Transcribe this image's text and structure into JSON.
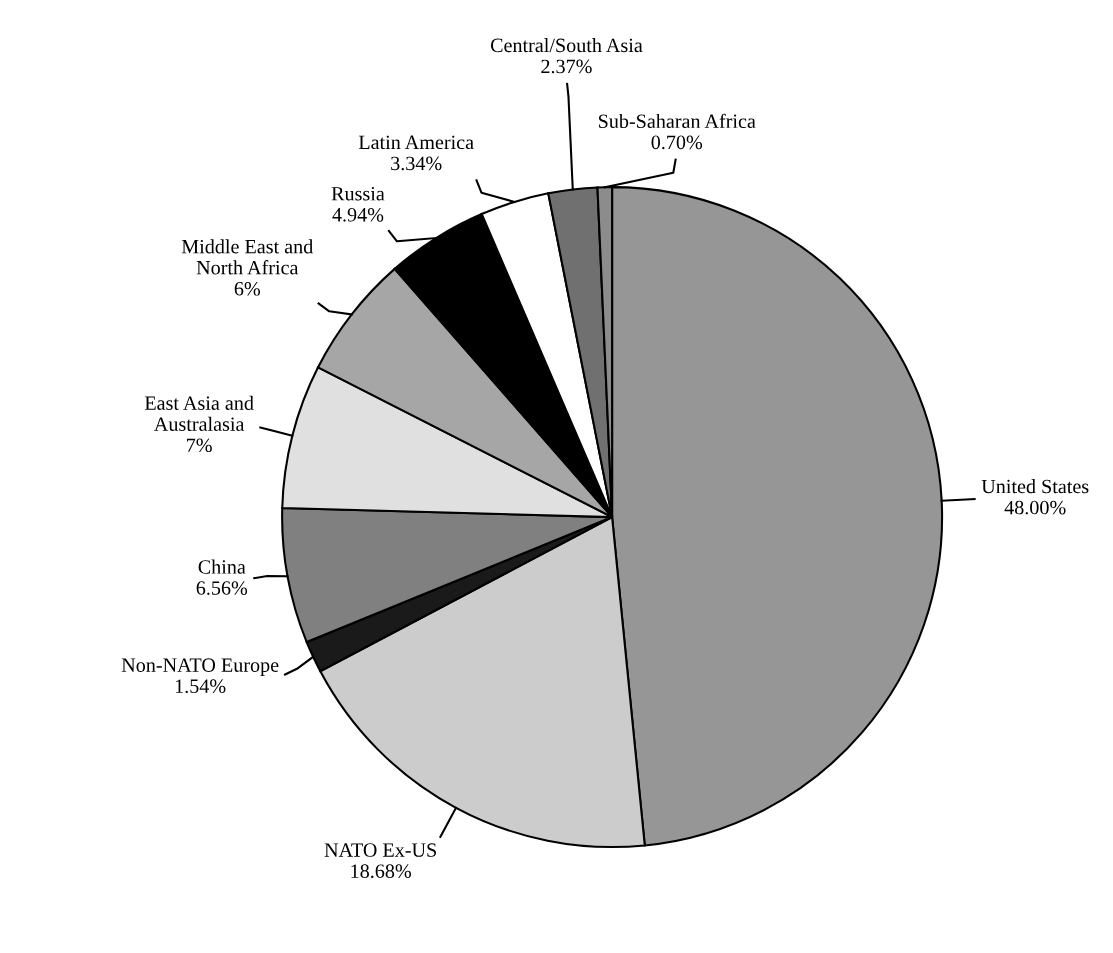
{
  "chart_data": {
    "type": "pie",
    "categories": [
      "United States",
      "NATO Ex-US",
      "Non-NATO Europe",
      "China",
      "East Asia and\nAustralasia",
      "Middle East and\nNorth Africa",
      "Russia",
      "Latin America",
      "Central/South Asia",
      "Sub-Saharan Africa"
    ],
    "values": [
      48.0,
      18.68,
      1.54,
      6.56,
      7,
      6,
      4.94,
      3.34,
      2.37,
      0.7
    ],
    "value_labels": [
      "48.00%",
      "18.68%",
      "1.54%",
      "6.56%",
      "7%",
      "6%",
      "4.94%",
      "3.34%",
      "2.37%",
      "0.70%"
    ],
    "colors": [
      "#969696",
      "#cccccc",
      "#1a1a1a",
      "#808080",
      "#e0e0e0",
      "#a6a6a6",
      "#000000",
      "#ffffff",
      "#707070",
      "#8c8c8c"
    ]
  }
}
